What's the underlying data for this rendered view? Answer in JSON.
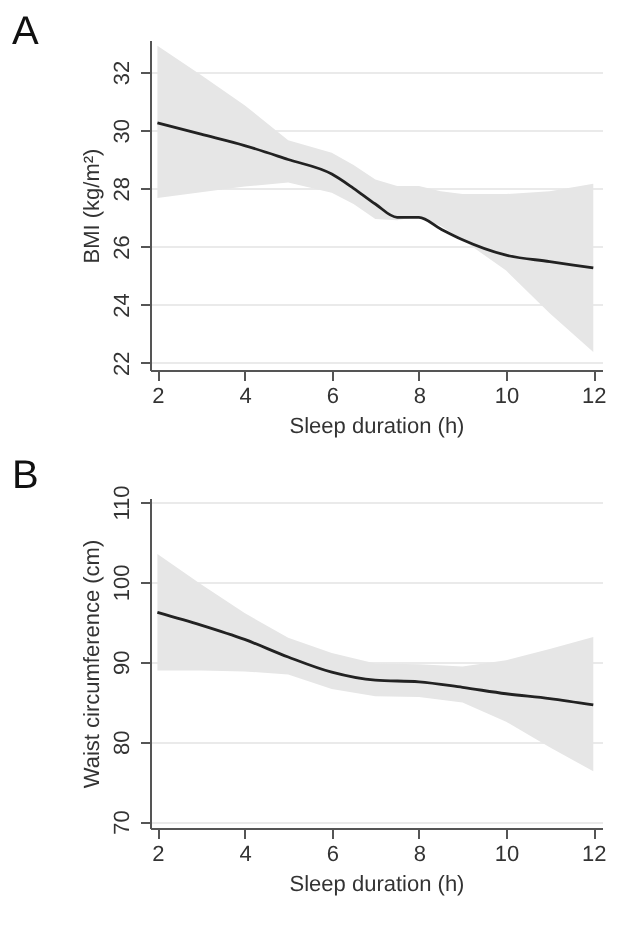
{
  "chart_data": [
    {
      "type": "line",
      "title": "A",
      "xlabel": "Sleep duration (h)",
      "ylabel": "BMI (kg/m²)",
      "x": [
        2,
        3,
        4,
        5,
        6,
        6.5,
        7,
        7.5,
        8,
        8.5,
        9,
        10,
        11,
        12
      ],
      "xlim": [
        1.83,
        12.2
      ],
      "xticks": [
        2,
        4,
        6,
        8,
        10,
        12
      ],
      "ylim": [
        21.75,
        33.1
      ],
      "yticks": [
        22,
        24,
        26,
        28,
        30,
        32
      ],
      "grid": "y",
      "series": [
        {
          "color": "#222222",
          "values": [
            30.25,
            29.86,
            29.47,
            28.99,
            28.49,
            28.0,
            27.46,
            27.0,
            27.0,
            26.6,
            26.23,
            25.7,
            25.48,
            25.26
          ],
          "upper": [
            32.9,
            31.9,
            30.86,
            29.65,
            29.22,
            28.8,
            28.3,
            28.08,
            28.08,
            27.9,
            27.8,
            27.8,
            27.9,
            28.16
          ],
          "lower": [
            27.67,
            27.86,
            28.06,
            28.2,
            27.85,
            27.46,
            26.94,
            26.9,
            27.04,
            26.7,
            26.23,
            25.17,
            23.7,
            22.37
          ]
        }
      ]
    },
    {
      "type": "line",
      "title": "B",
      "xlabel": "Sleep duration (h)",
      "ylabel": "Waist circumference (cm)",
      "x": [
        2,
        3,
        4,
        5,
        6,
        7,
        8,
        9,
        10,
        11,
        12
      ],
      "xlim": [
        1.83,
        12.2
      ],
      "xticks": [
        2,
        4,
        6,
        8,
        10,
        12
      ],
      "ylim": [
        69.2,
        110.5
      ],
      "yticks": [
        70,
        80,
        90,
        100,
        110
      ],
      "grid": "y",
      "series": [
        {
          "color": "#222222",
          "values": [
            96.2,
            94.6,
            92.8,
            90.6,
            88.7,
            87.7,
            87.5,
            86.8,
            86.0,
            85.4,
            84.6
          ],
          "upper": [
            103.5,
            99.7,
            96.1,
            93.0,
            91.1,
            89.8,
            89.7,
            89.4,
            90.2,
            91.6,
            93.1
          ],
          "lower": [
            88.9,
            88.9,
            88.8,
            88.4,
            86.6,
            85.7,
            85.6,
            84.9,
            82.5,
            79.3,
            76.3
          ]
        }
      ]
    }
  ]
}
